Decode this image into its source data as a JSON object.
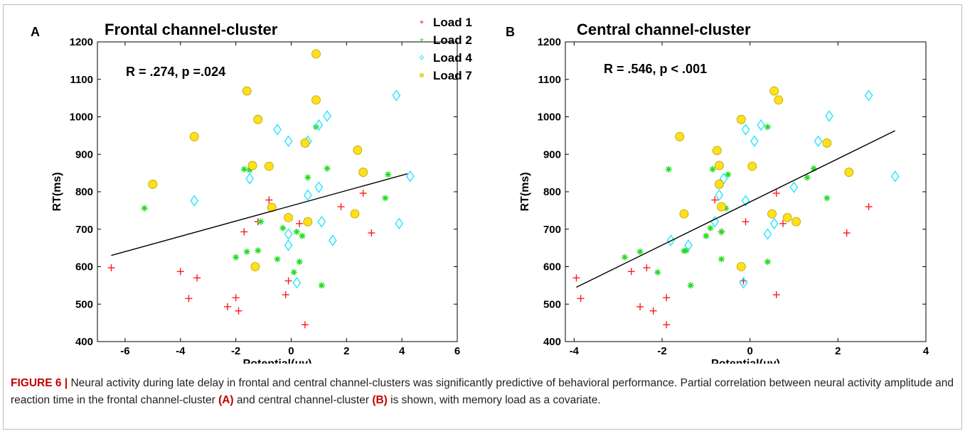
{
  "chart_data": [
    {
      "type": "scatter",
      "panel_label": "A",
      "title": "Frontal channel-cluster",
      "annotation": "R  = .274, p =.024",
      "xlabel": "Potential(μv)",
      "ylabel": "RT(ms)",
      "xlim": [
        -7,
        6
      ],
      "ylim": [
        400,
        1200
      ],
      "xticks": [
        -6,
        -4,
        -2,
        0,
        2,
        4,
        6
      ],
      "yticks": [
        400,
        500,
        600,
        700,
        800,
        900,
        1000,
        1100,
        1200
      ],
      "legend": {
        "placement": "top-right",
        "entries": [
          "Load 1",
          "Load 2",
          "Load 4",
          "Load 7"
        ]
      },
      "fit_line": {
        "x": [
          -6.5,
          4.2
        ],
        "y": [
          630,
          848
        ]
      },
      "series": [
        {
          "name": "Load 1",
          "marker": "plus",
          "color": "#ff1a1a",
          "x": [
            -6.5,
            -4.0,
            -3.7,
            -3.4,
            -2.3,
            -2.0,
            -1.9,
            -1.7,
            -1.2,
            -0.8,
            -0.2,
            -0.1,
            0.3,
            0.5,
            1.8,
            2.6,
            2.9
          ],
          "y": [
            597,
            587,
            515,
            570,
            493,
            517,
            482,
            693,
            720,
            778,
            525,
            562,
            715,
            445,
            760,
            796,
            690
          ]
        },
        {
          "name": "Load 2",
          "marker": "star",
          "color": "#22dd22",
          "x": [
            -5.3,
            -1.7,
            -2.0,
            -1.6,
            -1.5,
            -1.2,
            -1.1,
            -0.5,
            -0.3,
            0.1,
            0.2,
            0.3,
            0.4,
            0.6,
            0.9,
            1.1,
            1.3,
            3.4,
            3.5
          ],
          "y": [
            756,
            860,
            625,
            640,
            858,
            643,
            720,
            620,
            703,
            585,
            693,
            613,
            682,
            838,
            973,
            550,
            862,
            783,
            846
          ]
        },
        {
          "name": "Load 4",
          "marker": "diamond",
          "color": "#33e6ff",
          "x": [
            -3.5,
            -1.5,
            -0.5,
            -0.1,
            -0.1,
            -0.1,
            0.2,
            0.6,
            0.6,
            1.0,
            1.1,
            1.0,
            1.3,
            1.5,
            3.8,
            3.9,
            4.3
          ],
          "y": [
            776,
            835,
            966,
            935,
            687,
            657,
            557,
            935,
            791,
            812,
            720,
            978,
            1002,
            670,
            1057,
            715,
            841
          ]
        },
        {
          "name": "Load 7",
          "marker": "circle",
          "color": "#ffe01a",
          "x": [
            -5.0,
            -3.5,
            -1.6,
            -1.4,
            -1.3,
            -1.2,
            -0.8,
            -0.7,
            -0.1,
            0.5,
            0.6,
            0.9,
            0.9,
            2.3,
            2.4,
            2.6
          ],
          "y": [
            820,
            947,
            1069,
            870,
            600,
            993,
            868,
            758,
            731,
            930,
            720,
            1168,
            1045,
            741,
            911,
            852
          ]
        }
      ]
    },
    {
      "type": "scatter",
      "panel_label": "B",
      "title": "Central channel-cluster",
      "annotation": "R  = .546, p < .001",
      "xlabel": "Potential(μv)",
      "ylabel": "RT(ms)",
      "xlim": [
        -4.2,
        4
      ],
      "ylim": [
        400,
        1200
      ],
      "xticks": [
        -4,
        -2,
        0,
        2,
        4
      ],
      "yticks": [
        400,
        500,
        600,
        700,
        800,
        900,
        1000,
        1100,
        1200
      ],
      "fit_line": {
        "x": [
          -3.95,
          3.3
        ],
        "y": [
          545,
          963
        ]
      },
      "series": [
        {
          "name": "Load 1",
          "marker": "plus",
          "color": "#ff1a1a",
          "x": [
            -3.95,
            -3.85,
            -2.7,
            -2.5,
            -2.35,
            -2.2,
            -1.9,
            -1.9,
            -0.8,
            -0.65,
            -0.1,
            -0.15,
            0.6,
            0.6,
            0.75,
            2.2,
            2.7
          ],
          "y": [
            570,
            515,
            587,
            493,
            597,
            482,
            517,
            445,
            778,
            693,
            720,
            562,
            796,
            525,
            715,
            690,
            760
          ]
        },
        {
          "name": "Load 2",
          "marker": "star",
          "color": "#22dd22",
          "x": [
            -2.85,
            -2.5,
            -2.1,
            -1.85,
            -1.45,
            -1.35,
            -1.0,
            -0.9,
            -0.85,
            -0.65,
            -0.55,
            -0.5,
            0.4,
            0.4,
            1.3,
            1.45,
            1.75,
            -0.65,
            -1.5
          ],
          "y": [
            625,
            640,
            585,
            860,
            643,
            550,
            682,
            703,
            860,
            620,
            756,
            846,
            973,
            613,
            838,
            862,
            783,
            693,
            642
          ]
        },
        {
          "name": "Load 4",
          "marker": "diamond",
          "color": "#33e6ff",
          "x": [
            -1.8,
            -1.4,
            -0.8,
            -0.7,
            -0.6,
            -0.1,
            -0.1,
            -0.15,
            0.1,
            0.25,
            0.4,
            0.55,
            1.0,
            1.55,
            1.8,
            2.7,
            3.3
          ],
          "y": [
            670,
            657,
            720,
            791,
            835,
            966,
            776,
            557,
            935,
            978,
            687,
            715,
            812,
            935,
            1002,
            1057,
            841
          ]
        },
        {
          "name": "Load 7",
          "marker": "circle",
          "color": "#ffe01a",
          "x": [
            -1.6,
            -1.5,
            -0.75,
            -0.7,
            -0.7,
            -0.65,
            -0.2,
            -0.2,
            0.05,
            0.5,
            0.55,
            0.65,
            0.85,
            1.05,
            1.75,
            2.25
          ],
          "y": [
            947,
            741,
            910,
            820,
            870,
            760,
            993,
            600,
            868,
            741,
            1069,
            1045,
            731,
            720,
            930,
            852
          ]
        }
      ]
    }
  ],
  "caption": {
    "figure_label": "FIGURE 6 |",
    "text1": " Neural activity during late delay in frontal and central channel-clusters was significantly predictive of behavioral performance. Partial correlation between neural activity amplitude and reaction time in the frontal channel-cluster ",
    "ref_a": "(A)",
    "text2": " and central channel-cluster ",
    "ref_b": "(B)",
    "text3": " is shown, with memory load as a covariate."
  }
}
